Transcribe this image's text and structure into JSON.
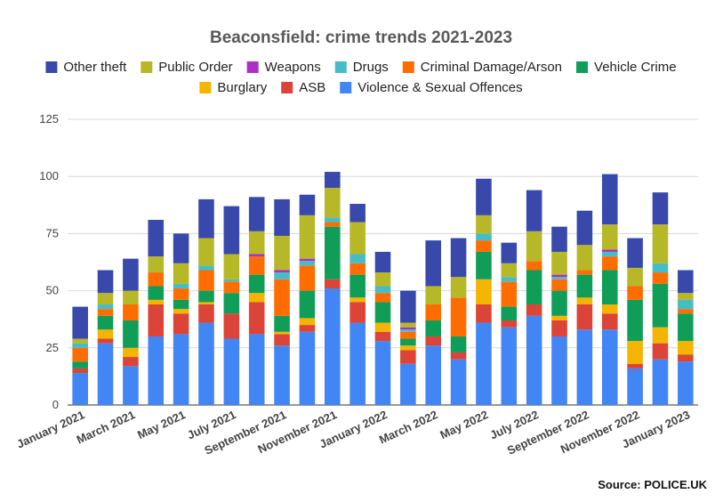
{
  "chart_data": {
    "type": "bar",
    "stacked": true,
    "title": "Beaconsfield: crime trends 2021-2023",
    "source": "Source: POLICE.UK",
    "ylim": [
      0,
      125
    ],
    "yticks": [
      0,
      25,
      50,
      75,
      100,
      125
    ],
    "grid": true,
    "legend_position": "top",
    "x": [
      "January 2021",
      "February 2021",
      "March 2021",
      "April 2021",
      "May 2021",
      "June 2021",
      "July 2021",
      "August 2021",
      "September 2021",
      "October 2021",
      "November 2021",
      "December 2021",
      "January 2022",
      "February 2022",
      "March 2022",
      "April 2022",
      "May 2022",
      "June 2022",
      "July 2022",
      "August 2022",
      "September 2022",
      "October 2022",
      "November 2022",
      "December 2022",
      "January 2023"
    ],
    "x_tick_labels": [
      "January 2021",
      "",
      "March 2021",
      "",
      "May 2021",
      "",
      "July 2021",
      "",
      "September 2021",
      "",
      "November 2021",
      "",
      "January 2022",
      "",
      "March 2022",
      "",
      "May 2022",
      "",
      "July 2022",
      "",
      "September 2022",
      "",
      "November 2022",
      "",
      "January 2023"
    ],
    "series": [
      {
        "name": "Violence & Sexual Offences",
        "color": "#4285f4",
        "values": [
          14,
          27,
          17,
          30,
          31,
          36,
          29,
          31,
          26,
          32,
          51,
          36,
          28,
          18,
          26,
          20,
          36,
          34,
          39,
          30,
          33,
          33,
          16,
          20,
          19
        ]
      },
      {
        "name": "ASB",
        "color": "#db4437",
        "values": [
          2,
          2,
          4,
          14,
          9,
          8,
          11,
          14,
          5,
          3,
          4,
          9,
          4,
          6,
          4,
          3,
          8,
          3,
          5,
          7,
          11,
          7,
          2,
          7,
          3
        ]
      },
      {
        "name": "Burglary",
        "color": "#f4b400",
        "values": [
          0,
          4,
          4,
          2,
          2,
          1,
          0,
          4,
          1,
          3,
          0,
          2,
          4,
          2,
          0,
          0,
          11,
          0,
          0,
          2,
          3,
          4,
          10,
          7,
          6
        ]
      },
      {
        "name": "Vehicle Crime",
        "color": "#0f9d58",
        "values": [
          3,
          6,
          12,
          6,
          4,
          5,
          9,
          8,
          7,
          12,
          23,
          10,
          9,
          3,
          7,
          7,
          12,
          6,
          15,
          11,
          10,
          15,
          18,
          19,
          12
        ]
      },
      {
        "name": "Criminal Damage/Arson",
        "color": "#ff6d01",
        "values": [
          6,
          3,
          7,
          6,
          5,
          9,
          5,
          8,
          16,
          11,
          2,
          5,
          4,
          3,
          7,
          17,
          5,
          11,
          4,
          5,
          2,
          6,
          6,
          5,
          2
        ]
      },
      {
        "name": "Drugs",
        "color": "#46bdc6",
        "values": [
          2,
          2,
          0,
          0,
          2,
          2,
          1,
          0,
          3,
          2,
          2,
          4,
          3,
          1,
          0,
          0,
          3,
          2,
          0,
          1,
          0,
          2,
          0,
          4,
          4
        ]
      },
      {
        "name": "Weapons",
        "color": "#ab30c4",
        "values": [
          0,
          0,
          0,
          0,
          0,
          0,
          0,
          1,
          1,
          1,
          0,
          0,
          0,
          1,
          0,
          0,
          0,
          0,
          0,
          1,
          0,
          1,
          0,
          0,
          0
        ]
      },
      {
        "name": "Public Order",
        "color": "#b7b827",
        "values": [
          2,
          5,
          6,
          7,
          9,
          12,
          11,
          10,
          15,
          19,
          13,
          14,
          6,
          2,
          8,
          9,
          8,
          6,
          13,
          10,
          11,
          11,
          8,
          17,
          3
        ]
      },
      {
        "name": "Other theft",
        "color": "#3949ab",
        "values": [
          14,
          10,
          14,
          16,
          13,
          17,
          21,
          15,
          16,
          9,
          7,
          8,
          9,
          14,
          20,
          17,
          16,
          9,
          18,
          11,
          15,
          22,
          13,
          14,
          10
        ]
      }
    ]
  }
}
